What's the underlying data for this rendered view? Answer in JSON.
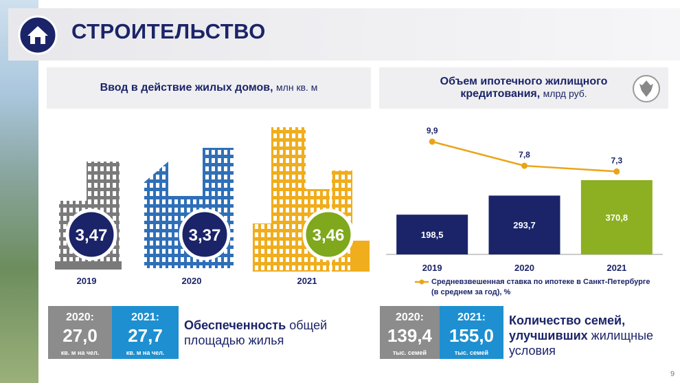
{
  "header": {
    "title": "СТРОИТЕЛЬСТВО"
  },
  "housing": {
    "title_bold": "Ввод в действие жилых домов,",
    "title_unit": "млн кв. м",
    "items": [
      {
        "year": "2019",
        "value": "3,47"
      },
      {
        "year": "2020",
        "value": "3,37"
      },
      {
        "year": "2021",
        "value": "3,46"
      }
    ],
    "boxes": [
      {
        "year": "2020:",
        "value": "27,0",
        "unit": "кв. м на чел."
      },
      {
        "year": "2021:",
        "value": "27,7",
        "unit": "кв. м на чел."
      }
    ],
    "text_bold": "Обеспеченность",
    "text": "общей площадью жилья"
  },
  "chart_data": {
    "type": "bar",
    "title_bold": "Объем ипотечного жилищного кредитования,",
    "title_unit": "млрд руб.",
    "categories": [
      "2019",
      "2020",
      "2021"
    ],
    "series": [
      {
        "values": [
          198.5,
          293.7,
          370.8
        ],
        "value_labels": [
          "198,5",
          "293,7",
          "370,8"
        ],
        "colors": [
          "#1b2468",
          "#1b2468",
          "#8cb021"
        ]
      },
      {
        "type": "line",
        "name": "Средневзвешенная ставка по ипотеке в Санкт-Петербурге (в среднем за год), %",
        "color": "#eba417",
        "values": [
          9.9,
          7.8,
          7.3
        ],
        "value_labels": [
          "9,9",
          "7,8",
          "7,3"
        ]
      }
    ]
  },
  "families": {
    "boxes": [
      {
        "year": "2020:",
        "value": "139,4",
        "unit": "тыс. семей"
      },
      {
        "year": "2021:",
        "value": "155,0",
        "unit": "тыс. семей"
      }
    ],
    "text_bold": "Количество семей, улучшивших",
    "text": "жилищные условия"
  },
  "page_number": "9"
}
